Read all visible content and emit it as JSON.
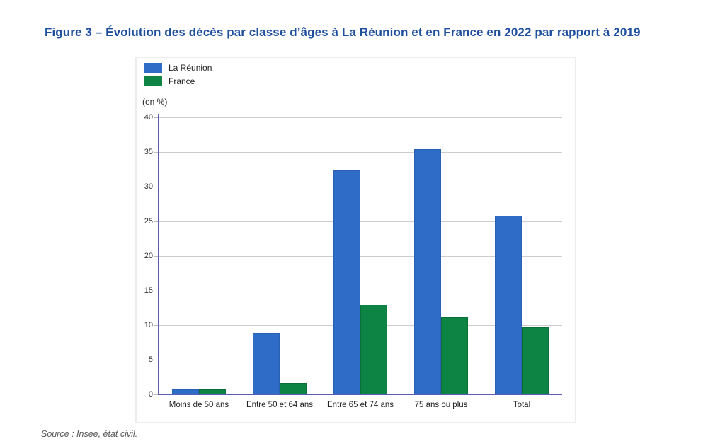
{
  "title": "Figure 3 – Évolution des décès par classe d’âges à La Réunion et en France en 2022 par rapport à 2019",
  "unit_label": "(en %)",
  "source": "Source : Insee, état civil.",
  "colors": {
    "title_blue": "#1d4f9e",
    "reunion_blue": "#2e6cc8",
    "france_green": "#0e8444",
    "axis_purple": "#5c5cb8",
    "gridline_gray": "#cdcdcd"
  },
  "legend": [
    {
      "label": "La Réunion",
      "color": "#2e6cc8"
    },
    {
      "label": "France",
      "color": "#0e8444"
    }
  ],
  "chart_data": {
    "type": "bar",
    "title": "Figure 3 – Évolution des décès par classe d’âges à La Réunion et en France en 2022 par rapport à 2019",
    "categories": [
      "Moins de 50 ans",
      "Entre 50 et 64 ans",
      "Entre 65 et 74 ans",
      "75 ans ou plus",
      "Total"
    ],
    "series": [
      {
        "name": "La Réunion",
        "color": "#2e6cc8",
        "values": [
          0.7,
          8.9,
          32.3,
          35.4,
          25.8
        ]
      },
      {
        "name": "France",
        "color": "#0e8444",
        "values": [
          0.7,
          1.6,
          13.0,
          11.1,
          9.7
        ]
      }
    ],
    "xlabel": "",
    "ylabel": "(en %)",
    "ylim": [
      0,
      40
    ],
    "ytick_step": 5,
    "grid": true,
    "legend_position": "top-left"
  }
}
